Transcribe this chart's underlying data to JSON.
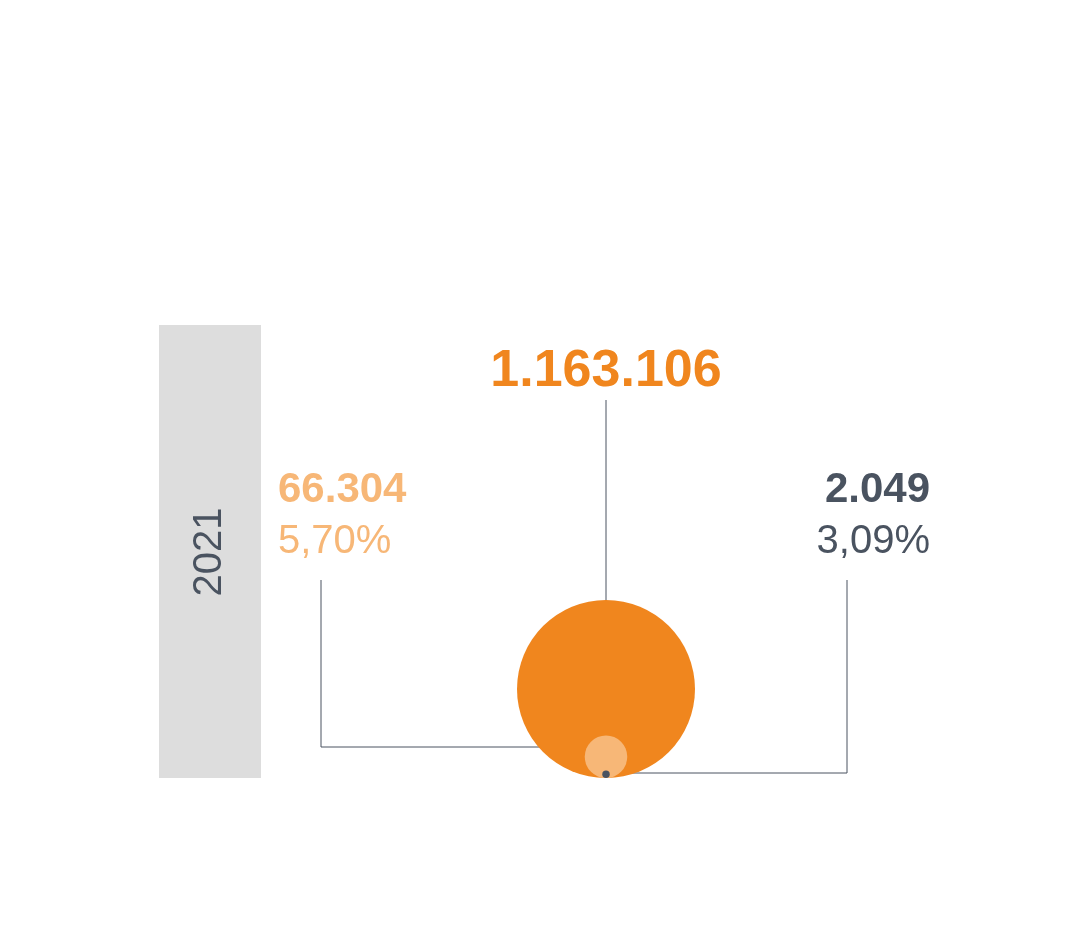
{
  "chart_data": {
    "type": "other",
    "ylabel": "2021",
    "categories": [
      null,
      null,
      null
    ],
    "values": [
      1163106,
      66304,
      2049
    ],
    "colors": [
      "#f0861e",
      "#f7b777",
      "#4a5360"
    ],
    "value_labels": [
      "1.163.106",
      "66.304",
      "2.049"
    ],
    "annotations": [
      "5,70%",
      "3,09%"
    ]
  }
}
